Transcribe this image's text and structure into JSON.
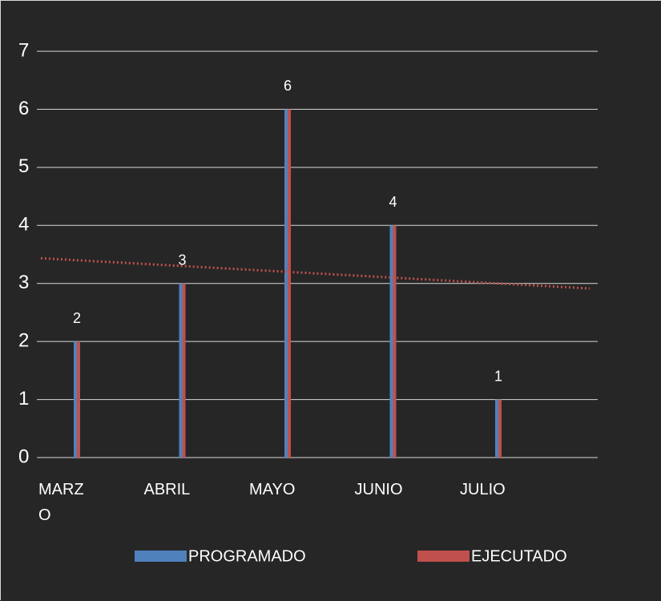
{
  "chart_data": {
    "type": "bar",
    "categories": [
      "MARZO",
      "ABRIL",
      "MAYO",
      "JUNIO",
      "JULIO"
    ],
    "series": [
      {
        "name": "PROGRAMADO",
        "color": "#4f81bd",
        "values": [
          2,
          3,
          6,
          4,
          1
        ]
      },
      {
        "name": "EJECUTADO",
        "color": "#c0504d",
        "values": [
          2,
          3,
          6,
          4,
          1
        ]
      }
    ],
    "ylim": [
      0,
      7
    ],
    "yticks": [
      0,
      1,
      2,
      3,
      4,
      5,
      6,
      7
    ],
    "grid": true,
    "trendline": "EJECUTADO",
    "legend": "bottom"
  }
}
